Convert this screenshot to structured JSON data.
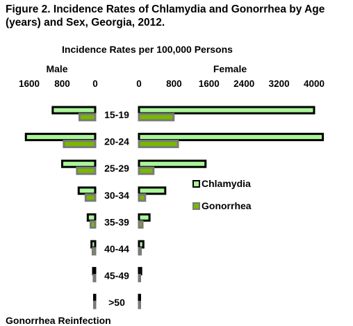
{
  "title": "Figure 2. Incidence Rates of Chlamydia and Gonorrhea by Age (years) and Sex, Georgia, 2012.",
  "footer": "Gonorrhea Reinfection",
  "chart_data": {
    "type": "bar",
    "orientation": "horizontal",
    "layout": "butterfly",
    "title": "Incidence Rates per 100,000 Persons",
    "categories": [
      "15-19",
      "20-24",
      "25-29",
      "30-34",
      "35-39",
      "40-44",
      "45-49",
      ">50"
    ],
    "panels": {
      "male": {
        "label": "Male",
        "xlim": [
          0,
          1600
        ],
        "ticks": [
          "1600",
          "800",
          "0"
        ],
        "series": [
          {
            "name": "Chlamydia",
            "values": [
              1030,
              1680,
              800,
              400,
              180,
              90,
              50,
              15
            ]
          },
          {
            "name": "Gonorrhea",
            "values": [
              380,
              760,
              440,
              230,
              110,
              60,
              35,
              10
            ]
          }
        ]
      },
      "female": {
        "label": "Female",
        "xlim": [
          0,
          4000
        ],
        "ticks": [
          "0",
          "800",
          "1600",
          "2400",
          "3200",
          "4000"
        ],
        "series": [
          {
            "name": "Chlamydia",
            "values": [
              4000,
              4200,
              1520,
              600,
              240,
              100,
              50,
              15
            ]
          },
          {
            "name": "Gonorrhea",
            "values": [
              790,
              890,
              330,
              140,
              80,
              40,
              20,
              5
            ]
          }
        ]
      }
    },
    "legend": [
      "Chlamydia",
      "Gonorrhea"
    ],
    "legend_position": "right",
    "colors": {
      "chlamydia": "#aaf59a",
      "gonorrhea": "#77b900",
      "outline_chlamydia": "#000000",
      "outline_gonorrhea": "#7a7a7a"
    }
  }
}
